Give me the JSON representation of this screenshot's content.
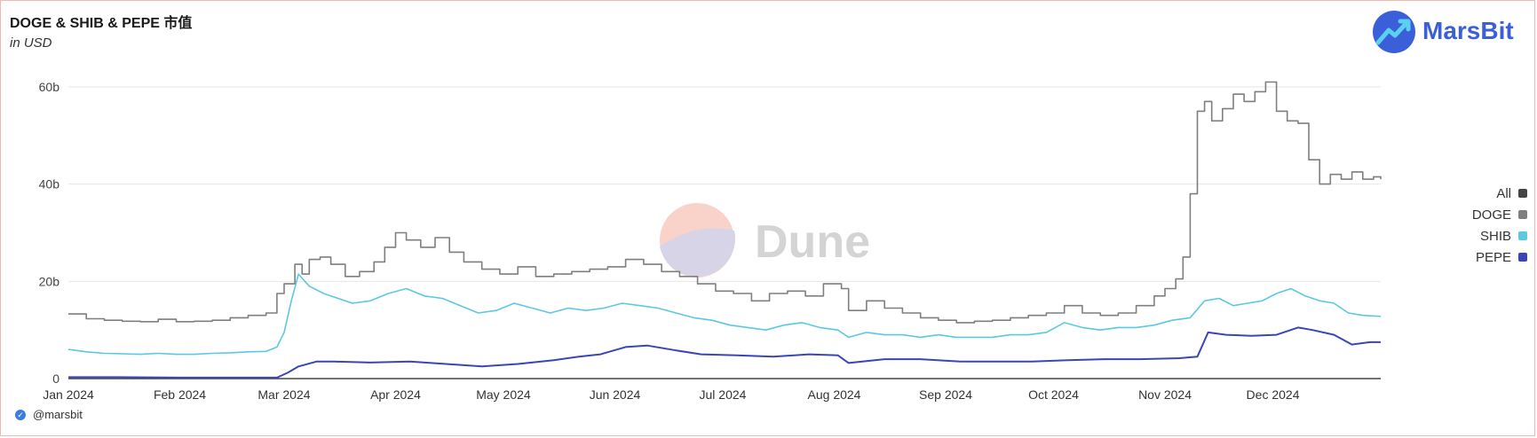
{
  "header": {
    "title": "DOGE & SHIB & PEPE 市值",
    "subtitle": "in USD"
  },
  "logo": {
    "text": "MarsBit"
  },
  "watermark": {
    "text": "Dune"
  },
  "footer": {
    "handle": "@marsbit"
  },
  "colors": {
    "all": "#444444",
    "doge": "#7f7f7f",
    "shib": "#5bc8e4",
    "pepe": "#3a46b8",
    "grid": "#e6e6e6",
    "axis": "#444444",
    "brand": "#3a5fd8"
  },
  "chart_data": {
    "type": "line",
    "title": "DOGE & SHIB & PEPE 市值",
    "subtitle": "in USD",
    "y_ticks": [
      {
        "value": 0,
        "label": "0"
      },
      {
        "value": 20,
        "label": "20b"
      },
      {
        "value": 40,
        "label": "40b"
      },
      {
        "value": 60,
        "label": "60b"
      }
    ],
    "ylim": [
      0,
      64
    ],
    "y_unit": "billion USD",
    "x_ticks": [
      {
        "value": "2024-01-01",
        "label": "Jan 2024"
      },
      {
        "value": "2024-02-01",
        "label": "Feb 2024"
      },
      {
        "value": "2024-03-01",
        "label": "Mar 2024"
      },
      {
        "value": "2024-04-01",
        "label": "Apr 2024"
      },
      {
        "value": "2024-05-01",
        "label": "May 2024"
      },
      {
        "value": "2024-06-01",
        "label": "Jun 2024"
      },
      {
        "value": "2024-07-01",
        "label": "Jul 2024"
      },
      {
        "value": "2024-08-01",
        "label": "Aug 2024"
      },
      {
        "value": "2024-09-01",
        "label": "Sep 2024"
      },
      {
        "value": "2024-10-01",
        "label": "Oct 2024"
      },
      {
        "value": "2024-11-01",
        "label": "Nov 2024"
      },
      {
        "value": "2024-12-01",
        "label": "Dec 2024"
      }
    ],
    "xlim": [
      "2024-01-01",
      "2024-12-31"
    ],
    "legend_position": "right",
    "legend": [
      "All",
      "DOGE",
      "SHIB",
      "PEPE"
    ],
    "grid": true,
    "series": [
      {
        "name": "DOGE",
        "step": true,
        "x": [
          "2024-01-01",
          "2024-01-06",
          "2024-01-11",
          "2024-01-16",
          "2024-01-21",
          "2024-01-26",
          "2024-01-31",
          "2024-02-05",
          "2024-02-10",
          "2024-02-15",
          "2024-02-20",
          "2024-02-25",
          "2024-02-28",
          "2024-03-01",
          "2024-03-04",
          "2024-03-06",
          "2024-03-08",
          "2024-03-11",
          "2024-03-14",
          "2024-03-18",
          "2024-03-22",
          "2024-03-26",
          "2024-03-29",
          "2024-04-01",
          "2024-04-04",
          "2024-04-08",
          "2024-04-12",
          "2024-04-16",
          "2024-04-20",
          "2024-04-25",
          "2024-04-30",
          "2024-05-05",
          "2024-05-10",
          "2024-05-15",
          "2024-05-20",
          "2024-05-25",
          "2024-05-30",
          "2024-06-04",
          "2024-06-09",
          "2024-06-14",
          "2024-06-19",
          "2024-06-24",
          "2024-06-29",
          "2024-07-04",
          "2024-07-09",
          "2024-07-14",
          "2024-07-19",
          "2024-07-24",
          "2024-07-29",
          "2024-08-03",
          "2024-08-05",
          "2024-08-10",
          "2024-08-15",
          "2024-08-20",
          "2024-08-25",
          "2024-08-30",
          "2024-09-04",
          "2024-09-09",
          "2024-09-14",
          "2024-09-19",
          "2024-09-24",
          "2024-09-29",
          "2024-10-04",
          "2024-10-09",
          "2024-10-14",
          "2024-10-19",
          "2024-10-24",
          "2024-10-29",
          "2024-11-01",
          "2024-11-04",
          "2024-11-06",
          "2024-11-08",
          "2024-11-10",
          "2024-11-12",
          "2024-11-14",
          "2024-11-17",
          "2024-11-20",
          "2024-11-23",
          "2024-11-26",
          "2024-11-29",
          "2024-12-02",
          "2024-12-05",
          "2024-12-08",
          "2024-12-11",
          "2024-12-14",
          "2024-12-17",
          "2024-12-20",
          "2024-12-23",
          "2024-12-26",
          "2024-12-29",
          "2024-12-31"
        ],
        "values": [
          13.3,
          12.3,
          12.0,
          11.8,
          11.7,
          12.2,
          11.7,
          11.8,
          12.0,
          12.5,
          13.0,
          13.5,
          17.5,
          19.5,
          23.5,
          21.5,
          24.5,
          25.0,
          23.5,
          21.0,
          22.0,
          24.0,
          27.0,
          30.0,
          28.5,
          27.0,
          29.0,
          26.0,
          24.0,
          22.5,
          21.5,
          23.0,
          21.0,
          21.5,
          22.0,
          22.5,
          23.0,
          24.5,
          23.5,
          22.0,
          21.0,
          19.5,
          18.0,
          17.5,
          16.0,
          17.5,
          18.0,
          17.0,
          19.5,
          18.5,
          14.0,
          16.0,
          14.5,
          13.5,
          12.5,
          12.0,
          11.5,
          11.8,
          12.0,
          12.5,
          13.0,
          13.5,
          15.0,
          13.5,
          13.0,
          13.5,
          15.0,
          17.0,
          18.5,
          20.5,
          25.0,
          38.0,
          55.0,
          57.0,
          53.0,
          55.5,
          58.5,
          57.0,
          59.0,
          61.0,
          55.0,
          53.0,
          52.5,
          45.0,
          40.0,
          42.0,
          41.0,
          42.5,
          41.0,
          41.5,
          41.0
        ]
      },
      {
        "name": "SHIB",
        "step": false,
        "x": [
          "2024-01-01",
          "2024-01-06",
          "2024-01-11",
          "2024-01-16",
          "2024-01-21",
          "2024-01-26",
          "2024-01-31",
          "2024-02-05",
          "2024-02-10",
          "2024-02-15",
          "2024-02-20",
          "2024-02-25",
          "2024-02-28",
          "2024-03-01",
          "2024-03-03",
          "2024-03-05",
          "2024-03-08",
          "2024-03-12",
          "2024-03-16",
          "2024-03-20",
          "2024-03-25",
          "2024-03-30",
          "2024-04-04",
          "2024-04-09",
          "2024-04-14",
          "2024-04-19",
          "2024-04-24",
          "2024-04-29",
          "2024-05-04",
          "2024-05-09",
          "2024-05-14",
          "2024-05-19",
          "2024-05-24",
          "2024-05-29",
          "2024-06-03",
          "2024-06-08",
          "2024-06-13",
          "2024-06-18",
          "2024-06-23",
          "2024-06-28",
          "2024-07-03",
          "2024-07-08",
          "2024-07-13",
          "2024-07-18",
          "2024-07-23",
          "2024-07-28",
          "2024-08-02",
          "2024-08-05",
          "2024-08-10",
          "2024-08-15",
          "2024-08-20",
          "2024-08-25",
          "2024-08-30",
          "2024-09-04",
          "2024-09-09",
          "2024-09-14",
          "2024-09-19",
          "2024-09-24",
          "2024-09-29",
          "2024-10-04",
          "2024-10-09",
          "2024-10-14",
          "2024-10-19",
          "2024-10-24",
          "2024-10-29",
          "2024-11-03",
          "2024-11-08",
          "2024-11-12",
          "2024-11-16",
          "2024-11-20",
          "2024-11-24",
          "2024-11-28",
          "2024-12-02",
          "2024-12-06",
          "2024-12-10",
          "2024-12-14",
          "2024-12-18",
          "2024-12-22",
          "2024-12-26",
          "2024-12-31"
        ],
        "values": [
          6.0,
          5.5,
          5.2,
          5.1,
          5.0,
          5.2,
          5.0,
          5.0,
          5.2,
          5.3,
          5.5,
          5.6,
          6.5,
          9.5,
          16.0,
          21.5,
          19.0,
          17.5,
          16.5,
          15.5,
          16.0,
          17.5,
          18.5,
          17.0,
          16.5,
          15.0,
          13.5,
          14.0,
          15.5,
          14.5,
          13.5,
          14.5,
          14.0,
          14.5,
          15.5,
          15.0,
          14.5,
          13.5,
          12.5,
          12.0,
          11.0,
          10.5,
          10.0,
          11.0,
          11.5,
          10.5,
          10.0,
          8.5,
          9.5,
          9.0,
          9.0,
          8.5,
          9.0,
          8.5,
          8.5,
          8.5,
          9.0,
          9.0,
          9.5,
          11.5,
          10.5,
          10.0,
          10.5,
          10.5,
          11.0,
          12.0,
          12.5,
          16.0,
          16.5,
          15.0,
          15.5,
          16.0,
          17.5,
          18.5,
          17.0,
          16.0,
          15.5,
          13.5,
          13.0,
          12.8
        ]
      },
      {
        "name": "PEPE",
        "step": false,
        "x": [
          "2024-01-01",
          "2024-01-15",
          "2024-02-01",
          "2024-02-15",
          "2024-02-28",
          "2024-03-02",
          "2024-03-05",
          "2024-03-10",
          "2024-03-15",
          "2024-03-25",
          "2024-04-05",
          "2024-04-15",
          "2024-04-25",
          "2024-05-05",
          "2024-05-15",
          "2024-05-22",
          "2024-05-28",
          "2024-06-04",
          "2024-06-10",
          "2024-06-18",
          "2024-06-25",
          "2024-07-05",
          "2024-07-15",
          "2024-07-25",
          "2024-08-02",
          "2024-08-05",
          "2024-08-15",
          "2024-08-25",
          "2024-09-05",
          "2024-09-15",
          "2024-09-25",
          "2024-10-05",
          "2024-10-15",
          "2024-10-25",
          "2024-11-05",
          "2024-11-10",
          "2024-11-13",
          "2024-11-18",
          "2024-11-25",
          "2024-12-02",
          "2024-12-08",
          "2024-12-12",
          "2024-12-18",
          "2024-12-23",
          "2024-12-28",
          "2024-12-31"
        ],
        "values": [
          0.3,
          0.3,
          0.2,
          0.2,
          0.2,
          1.2,
          2.5,
          3.5,
          3.5,
          3.3,
          3.5,
          3.0,
          2.5,
          3.0,
          3.8,
          4.5,
          5.0,
          6.5,
          6.8,
          5.8,
          5.0,
          4.8,
          4.5,
          5.0,
          4.8,
          3.2,
          4.0,
          4.0,
          3.5,
          3.5,
          3.5,
          3.8,
          4.0,
          4.0,
          4.2,
          4.5,
          9.5,
          9.0,
          8.8,
          9.0,
          10.5,
          10.0,
          9.0,
          7.0,
          7.5,
          7.5
        ]
      }
    ]
  }
}
